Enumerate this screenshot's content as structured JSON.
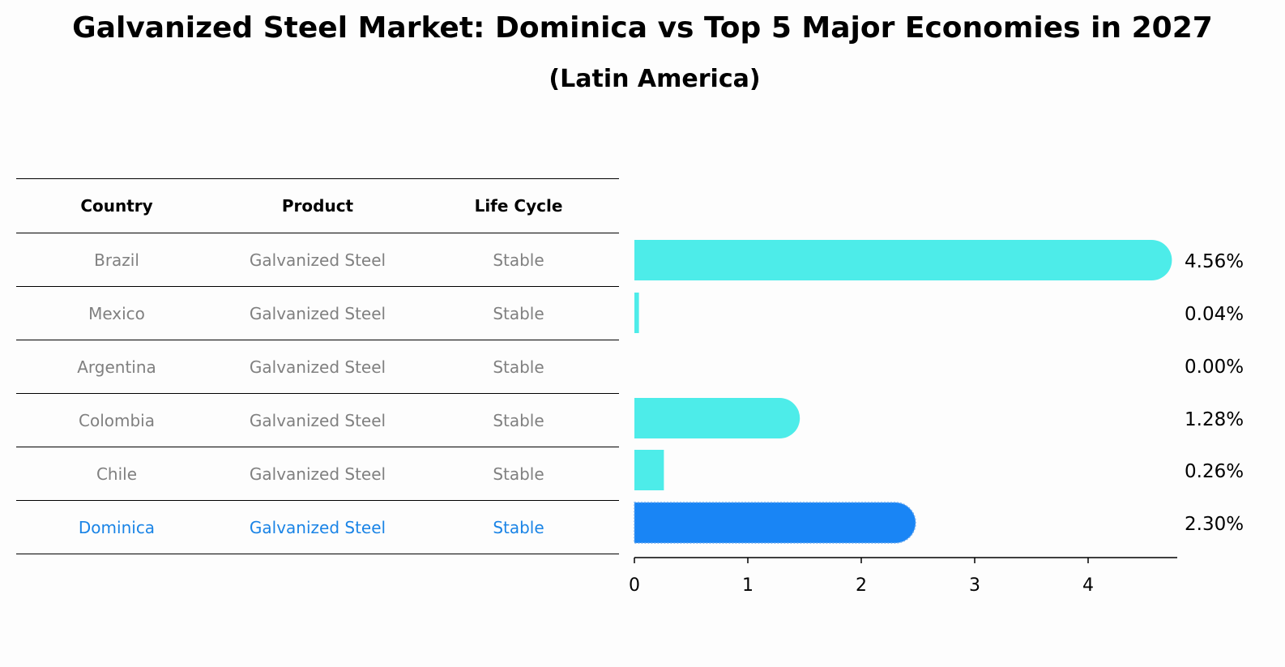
{
  "title": "Galvanized Steel Market: Dominica vs Top 5 Major Economies in 2027",
  "subtitle": "(Latin America)",
  "table": {
    "headers": [
      "Country",
      "Product",
      "Life Cycle"
    ],
    "rows": [
      [
        "Brazil",
        "Galvanized Steel",
        "Stable"
      ],
      [
        "Mexico",
        "Galvanized Steel",
        "Stable"
      ],
      [
        "Argentina",
        "Galvanized Steel",
        "Stable"
      ],
      [
        "Colombia",
        "Galvanized Steel",
        "Stable"
      ],
      [
        "Chile",
        "Galvanized Steel",
        "Stable"
      ],
      [
        "Dominica",
        "Galvanized Steel",
        "Stable"
      ]
    ],
    "highlight_row": 5
  },
  "chart_data": {
    "type": "bar",
    "orientation": "horizontal",
    "categories": [
      "Brazil",
      "Mexico",
      "Argentina",
      "Colombia",
      "Chile",
      "Dominica"
    ],
    "values": [
      4.56,
      0.04,
      0.0,
      1.28,
      0.26,
      2.3
    ],
    "value_labels": [
      "4.56%",
      "0.04%",
      "0.00%",
      "1.28%",
      "0.26%",
      "2.30%"
    ],
    "xticks": [
      0,
      1,
      2,
      3,
      4
    ],
    "xlim": [
      0,
      4.78
    ],
    "colors": {
      "default": "#4dece9",
      "highlight": "#1985f5"
    },
    "highlight_category": "Dominica"
  }
}
